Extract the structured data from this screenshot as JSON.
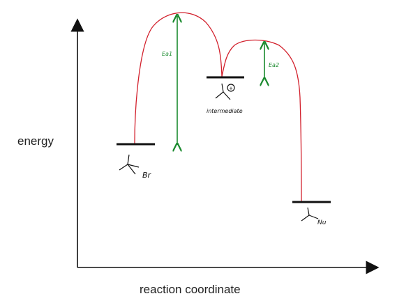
{
  "axes": {
    "y_label": "energy",
    "x_label": "reaction coordinate"
  },
  "levels": {
    "reactant_label": "Br",
    "intermediate_label": "intermediate",
    "intermediate_charge": "+",
    "product_label": "Nu"
  },
  "activation": {
    "ea1_label": "Ea1",
    "ea2_label": "Ea2"
  },
  "colors": {
    "curve": "#d21f2b",
    "arrow": "#1a8a2e",
    "axis": "#111111"
  }
}
